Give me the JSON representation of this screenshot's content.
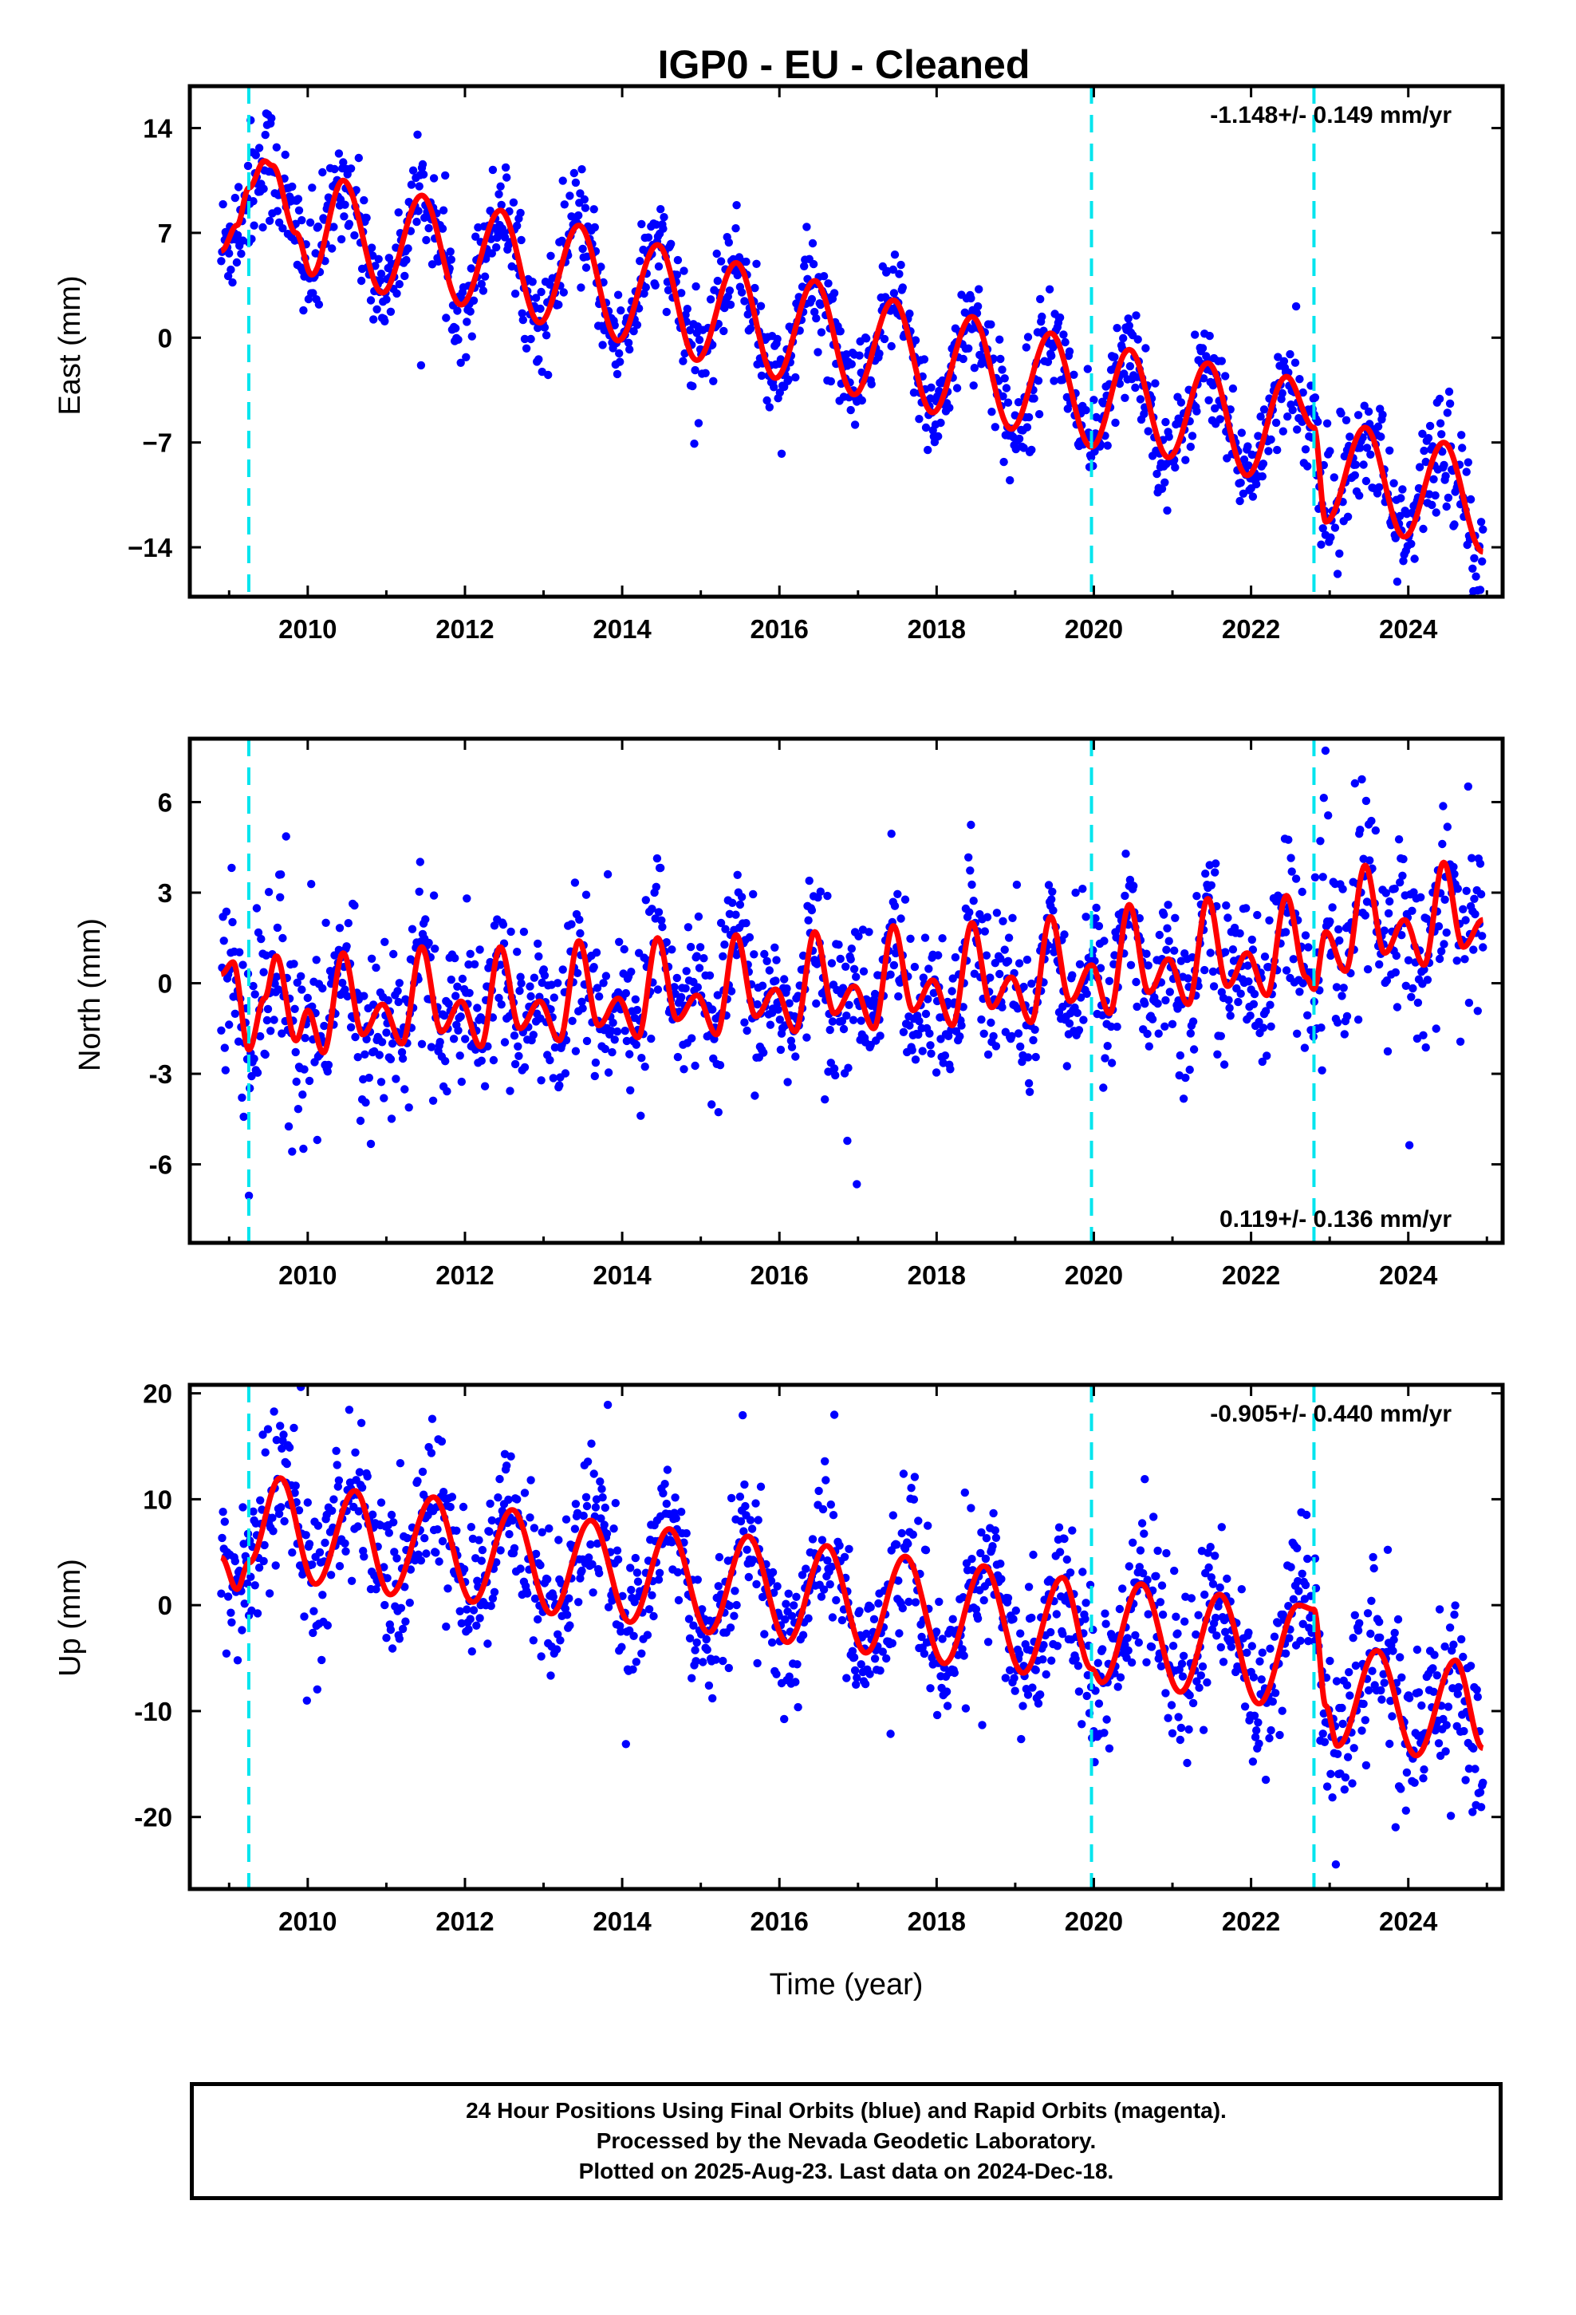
{
  "title": "IGP0  - EU - Cleaned",
  "colors": {
    "final_orbits": "#0000ff",
    "model": "#ff0000",
    "offsets": "#00e5ee",
    "frame": "#000000"
  },
  "chart_data": [
    {
      "type": "scatter",
      "name": "east",
      "ylabel": "East (mm)",
      "xlabel": "",
      "xlim": [
        2008.5,
        2025.2
      ],
      "ylim": [
        -17.3,
        16.8
      ],
      "xticks": [
        "2010",
        "2012",
        "2014",
        "2016",
        "2018",
        "2020",
        "2022",
        "2024"
      ],
      "yticks": [
        "14",
        "7",
        "0",
        "−7",
        "−14"
      ],
      "rate_text": "-1.148+/- 0.149 mm/yr",
      "rate_position": "top-right",
      "offset_epochs": [
        2009.25,
        2019.97,
        2022.8
      ],
      "model": {
        "x": [
          2008.9,
          2009.1,
          2009.25,
          2009.45,
          2009.55,
          2009.85,
          2010.05,
          2010.45,
          2010.95,
          2011.45,
          2011.95,
          2012.45,
          2012.95,
          2013.45,
          2013.95,
          2014.45,
          2014.95,
          2015.45,
          2015.95,
          2016.45,
          2016.95,
          2017.45,
          2017.95,
          2018.45,
          2018.95,
          2019.45,
          2019.97,
          2020.45,
          2020.95,
          2021.45,
          2021.95,
          2022.45,
          2022.8,
          2022.95,
          2023.45,
          2023.95,
          2024.45,
          2024.95
        ],
        "y": [
          5.8,
          7.5,
          10.0,
          11.8,
          11.5,
          7.0,
          4.2,
          10.5,
          3.0,
          9.5,
          2.2,
          8.5,
          1.0,
          7.5,
          -0.2,
          6.2,
          -1.5,
          5.0,
          -2.7,
          3.8,
          -3.8,
          2.5,
          -5.0,
          1.4,
          -6.1,
          0.3,
          -7.3,
          -0.8,
          -8.0,
          -1.7,
          -9.2,
          -2.6,
          -6.0,
          -12.3,
          -6.0,
          -13.3,
          -7.0,
          -14.3
        ]
      },
      "scatter": {
        "sigma": 1.6,
        "extra_sigma_early": 1.2
      }
    },
    {
      "type": "scatter",
      "name": "north",
      "ylabel": "North (mm)",
      "xlabel": "",
      "xlim": [
        2008.5,
        2025.2
      ],
      "ylim": [
        -8.6,
        8.1
      ],
      "xticks": [
        "2010",
        "2012",
        "2014",
        "2016",
        "2018",
        "2020",
        "2022",
        "2024"
      ],
      "yticks": [
        "6",
        "3",
        "0",
        "-3",
        "-6"
      ],
      "rate_text": "0.119+/- 0.136 mm/yr",
      "rate_position": "bottom-right",
      "offset_epochs": [
        2009.25,
        2019.97,
        2022.8
      ],
      "model": {
        "x": [
          2008.9,
          2009.05,
          2009.25,
          2009.45,
          2009.6,
          2009.85,
          2010.0,
          2010.2,
          2010.45,
          2010.7,
          2010.95,
          2011.2,
          2011.45,
          2011.7,
          2011.95,
          2012.2,
          2012.45,
          2012.7,
          2012.95,
          2013.2,
          2013.45,
          2013.7,
          2013.95,
          2014.2,
          2014.45,
          2014.7,
          2014.95,
          2015.2,
          2015.45,
          2015.7,
          2015.95,
          2016.2,
          2016.45,
          2016.7,
          2016.95,
          2017.2,
          2017.45,
          2017.7,
          2017.95,
          2018.2,
          2018.45,
          2018.7,
          2018.95,
          2019.2,
          2019.45,
          2019.7,
          2019.97,
          2020.2,
          2020.45,
          2020.7,
          2020.95,
          2021.2,
          2021.45,
          2021.7,
          2021.95,
          2022.2,
          2022.45,
          2022.7,
          2022.8,
          2022.95,
          2023.2,
          2023.45,
          2023.7,
          2023.95,
          2024.2,
          2024.45,
          2024.7,
          2024.95
        ],
        "y": [
          0.3,
          0.7,
          -2.2,
          -0.5,
          0.9,
          -1.9,
          -0.9,
          -2.3,
          1.0,
          -1.7,
          -0.7,
          -2.0,
          1.2,
          -1.6,
          -0.6,
          -2.1,
          1.2,
          -1.5,
          -0.6,
          -1.9,
          1.4,
          -1.4,
          -0.5,
          -1.8,
          1.5,
          -1.2,
          -0.4,
          -1.7,
          1.6,
          -1.1,
          -0.2,
          -1.6,
          1.7,
          -1.0,
          -0.1,
          -1.5,
          1.9,
          -0.9,
          0.1,
          -1.4,
          2.0,
          -0.8,
          0.2,
          -1.3,
          2.2,
          -0.6,
          0.6,
          -1.0,
          2.6,
          -0.3,
          0.8,
          -0.7,
          2.8,
          -0.1,
          1.0,
          -0.4,
          2.9,
          0.2,
          -0.2,
          1.7,
          0.4,
          3.9,
          1.0,
          2.1,
          0.6,
          4.0,
          1.2,
          2.1
        ]
      },
      "scatter": {
        "sigma": 1.25,
        "extra_sigma_early": 0.8
      }
    },
    {
      "type": "scatter",
      "name": "up",
      "ylabel": "Up (mm)",
      "xlabel": "Time (year)",
      "xlim": [
        2008.5,
        2025.2
      ],
      "ylim": [
        -26.8,
        20.8
      ],
      "xticks": [
        "2010",
        "2012",
        "2014",
        "2016",
        "2018",
        "2020",
        "2022",
        "2024"
      ],
      "yticks": [
        "20",
        "10",
        "0",
        "-10",
        "-20"
      ],
      "rate_text": "-0.905+/- 0.440 mm/yr",
      "rate_position": "top-right",
      "offset_epochs": [
        2009.25,
        2019.97,
        2022.8
      ],
      "model": {
        "x": [
          2008.9,
          2009.1,
          2009.25,
          2009.65,
          2010.1,
          2010.6,
          2011.05,
          2011.6,
          2012.1,
          2012.6,
          2013.1,
          2013.6,
          2014.1,
          2014.6,
          2015.1,
          2015.6,
          2016.1,
          2016.6,
          2017.1,
          2017.6,
          2018.1,
          2018.6,
          2019.1,
          2019.6,
          2019.97,
          2020.1,
          2020.6,
          2021.1,
          2021.6,
          2022.1,
          2022.6,
          2022.8,
          2022.95,
          2023.1,
          2023.6,
          2024.1,
          2024.6,
          2024.95
        ],
        "y": [
          4.5,
          1.5,
          4.0,
          12.0,
          2.0,
          10.8,
          1.0,
          10.2,
          0.3,
          9.0,
          -0.8,
          8.0,
          -1.6,
          7.2,
          -2.6,
          6.5,
          -3.5,
          5.6,
          -4.5,
          4.6,
          -5.5,
          3.7,
          -6.4,
          2.6,
          -6.0,
          -7.3,
          2.0,
          -8.2,
          1.0,
          -9.3,
          0.0,
          -0.4,
          -9.5,
          -13.3,
          -4.3,
          -14.2,
          -5.2,
          -13.5
        ]
      },
      "scatter": {
        "sigma": 3.4,
        "extra_sigma_early": 1.5
      }
    }
  ],
  "footer": {
    "line1": "24 Hour Positions Using Final Orbits (blue) and Rapid Orbits (magenta).",
    "line2": "Processed by the Nevada Geodetic Laboratory.",
    "line3": "Plotted on 2025-Aug-23. Last data on 2024-Dec-18."
  }
}
